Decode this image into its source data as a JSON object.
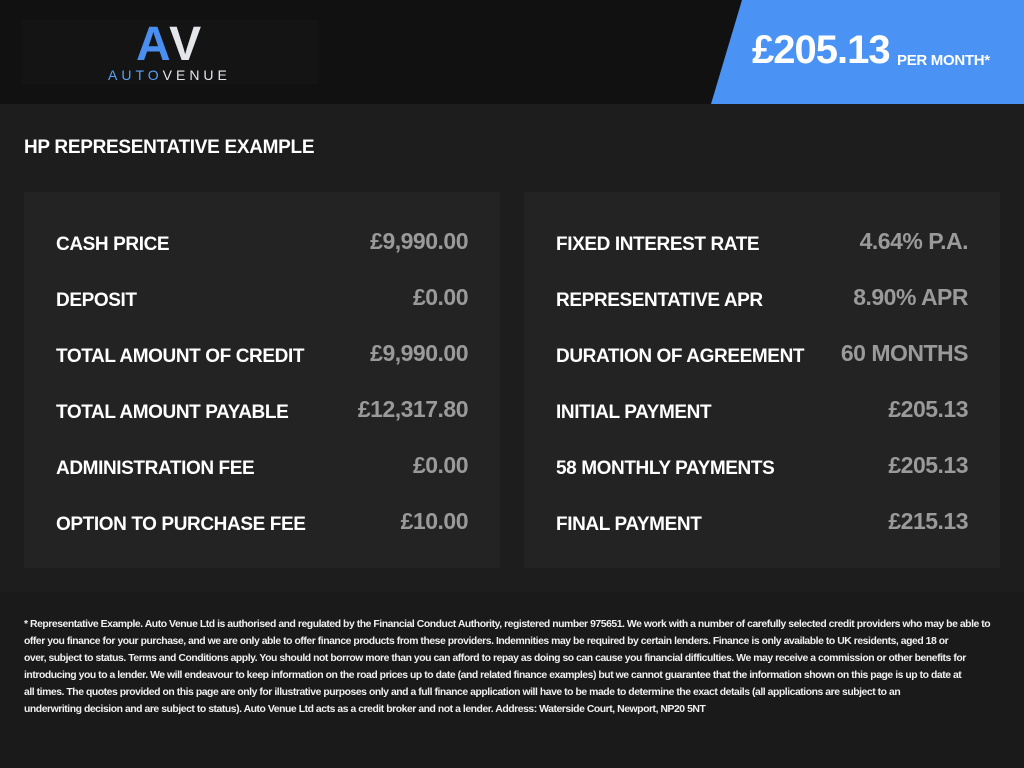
{
  "header": {
    "logo_mark_a": "A",
    "logo_mark_v": "V",
    "logo_text_1": "AUTO",
    "logo_text_2": "VENUE",
    "price": "£205.13",
    "per_month": "PER MONTH*",
    "accent": "#4a93f4"
  },
  "section_title": "HP REPRESENTATIVE EXAMPLE",
  "left": [
    {
      "label": "CASH PRICE",
      "value": "£9,990.00"
    },
    {
      "label": "DEPOSIT",
      "value": "£0.00"
    },
    {
      "label": "TOTAL AMOUNT OF CREDIT",
      "value": "£9,990.00"
    },
    {
      "label": "TOTAL AMOUNT PAYABLE",
      "value": "£12,317.80"
    },
    {
      "label": "ADMINISTRATION FEE",
      "value": "£0.00"
    },
    {
      "label": "OPTION TO PURCHASE FEE",
      "value": "£10.00"
    }
  ],
  "right": [
    {
      "label": "FIXED INTEREST RATE",
      "value": "4.64% P.A."
    },
    {
      "label": "REPRESENTATIVE APR",
      "value": "8.90% APR"
    },
    {
      "label": "DURATION OF AGREEMENT",
      "value": "60 MONTHS"
    },
    {
      "label": "INITIAL PAYMENT",
      "value": "£205.13"
    },
    {
      "label": "58 MONTHLY PAYMENTS",
      "value": "£205.13"
    },
    {
      "label": "FINAL PAYMENT",
      "value": "£215.13"
    }
  ],
  "disclaimer": [
    "* Representative Example. Auto Venue Ltd is authorised and regulated by the Financial Conduct Authority, registered number 975651. We work with a number of carefully selected credit providers who may be able to",
    "offer you finance for your purchase, and we are only able to offer finance products from these providers. Indemnities may be required by certain lenders. Finance is only available to UK residents, aged 18 or",
    "over, subject to status. Terms and Conditions apply. You should not borrow more than you can afford to repay as doing so can cause you financial difficulties. We may receive a commission or other benefits for",
    "introducing you to a lender. We will endeavour to keep information on the road prices up to date (and related finance examples) but we cannot guarantee that the information shown on this page is up to date at",
    "all times. The quotes provided on this page are only for illustrative purposes only and a full finance application will have to be made to determine the exact details (all applications are subject to an",
    "underwriting decision and are subject to status). Auto Venue Ltd acts as a credit broker and not a lender. Address: Waterside Court, Newport, NP20 5NT"
  ]
}
